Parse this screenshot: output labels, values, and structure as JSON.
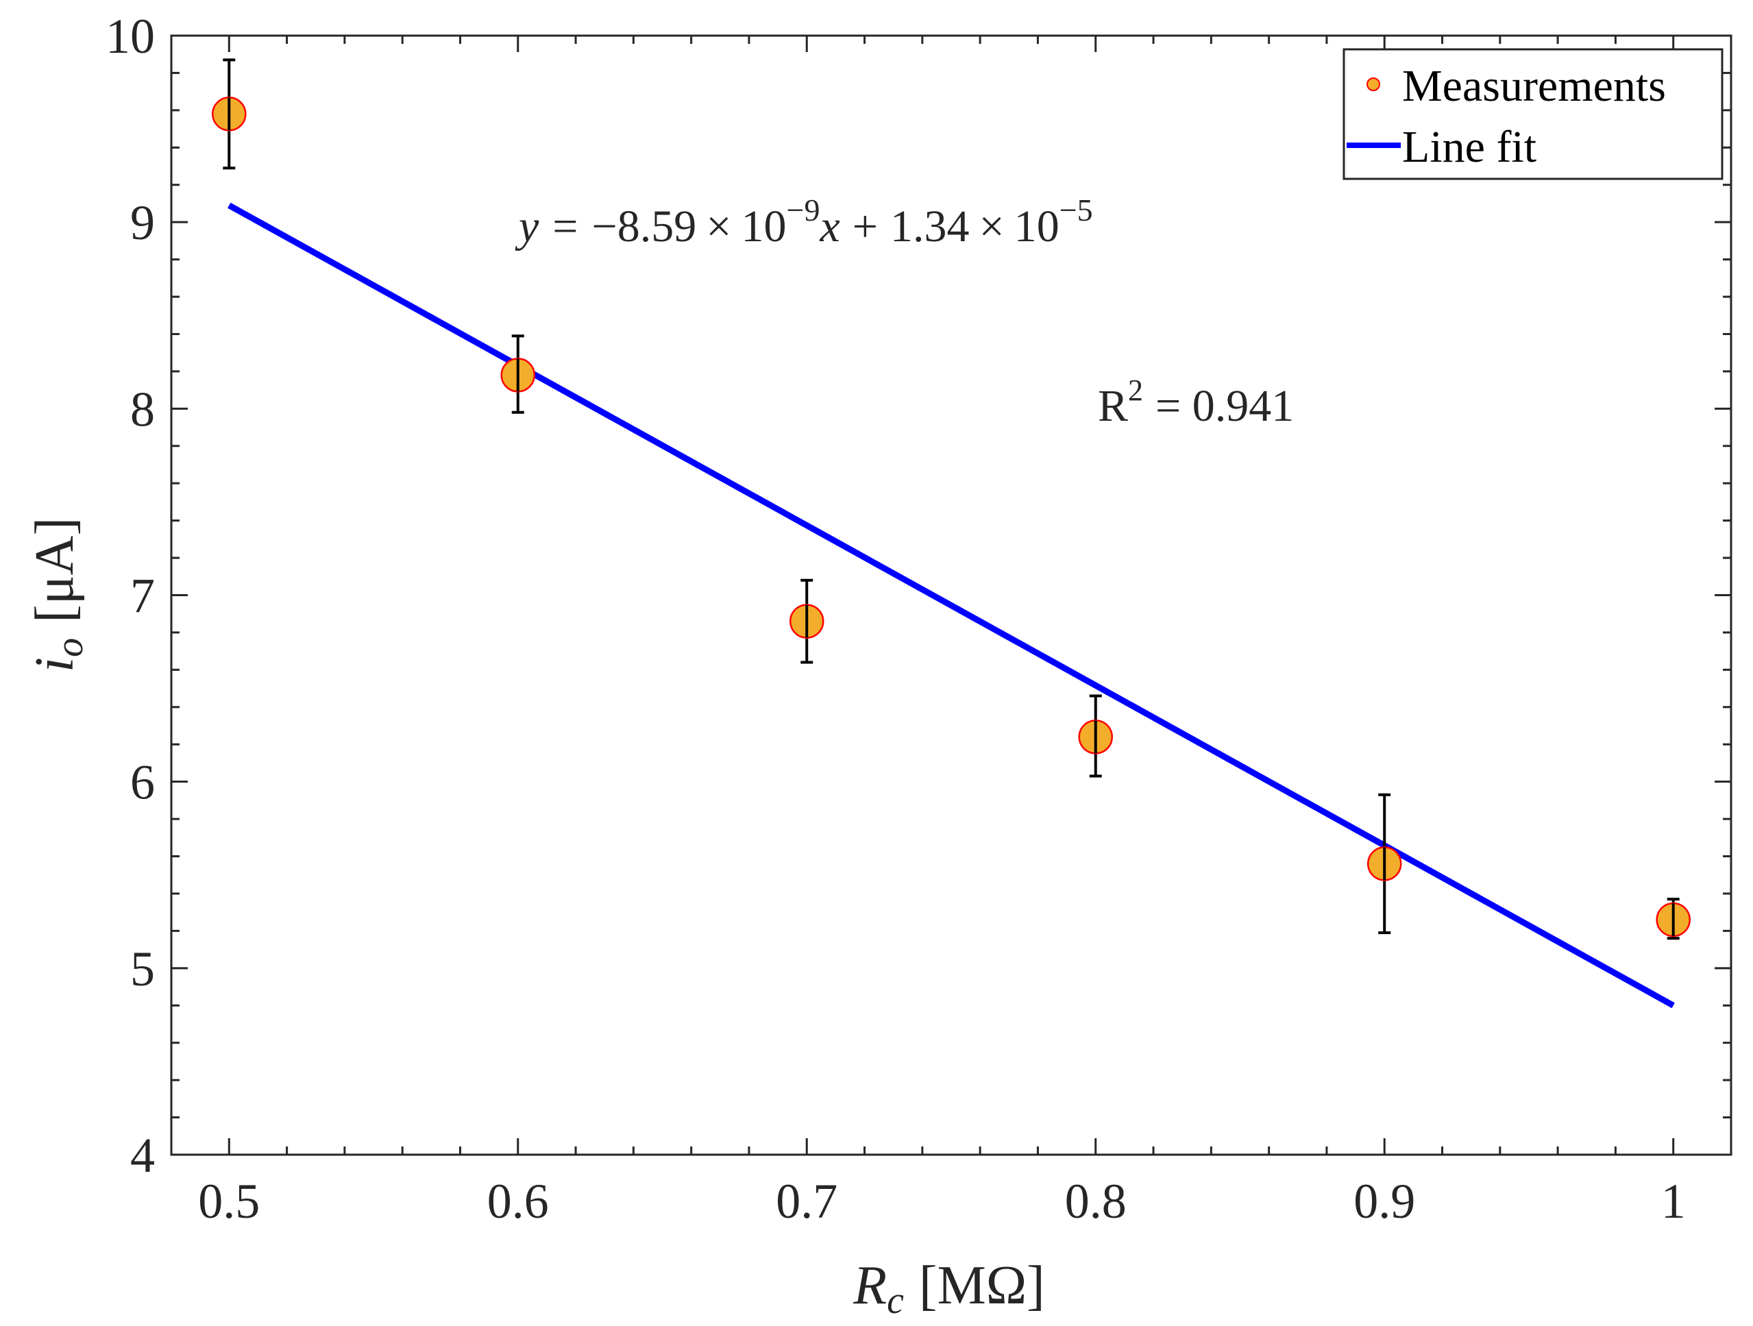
{
  "chart_data": {
    "type": "scatter",
    "title": "",
    "xlabel": {
      "symbol": "R",
      "subscript": "c",
      "unit": "[MΩ]"
    },
    "ylabel": {
      "symbol": "i",
      "subscript": "o",
      "unit": "[μA]"
    },
    "xlim": [
      0.48,
      1.02
    ],
    "ylim": [
      4,
      10
    ],
    "x_major_ticks": [
      0.5,
      0.6,
      0.7,
      0.8,
      0.9,
      1.0
    ],
    "x_tick_labels": [
      "0.5",
      "0.6",
      "0.7",
      "0.8",
      "0.9",
      "1"
    ],
    "x_minor_step": 0.02,
    "y_major_ticks": [
      4,
      5,
      6,
      7,
      8,
      9,
      10
    ],
    "y_tick_labels": [
      "4",
      "5",
      "6",
      "7",
      "8",
      "9",
      "10"
    ],
    "y_minor_step": 0.2,
    "grid": false,
    "series": [
      {
        "name": "Measurements",
        "kind": "scatter-errorbar",
        "x": [
          0.5,
          0.6,
          0.7,
          0.8,
          0.9,
          1.0
        ],
        "y": [
          9.58,
          8.18,
          6.86,
          6.24,
          5.56,
          5.26
        ],
        "error_low": [
          9.29,
          7.98,
          6.64,
          6.03,
          5.19,
          5.16
        ],
        "error_high": [
          9.87,
          8.39,
          7.08,
          6.46,
          5.93,
          5.37
        ],
        "marker_face": "#f2ad2b",
        "marker_edge": "#ff0000",
        "errorbar_color": "#000000"
      },
      {
        "name": "Line fit",
        "kind": "line",
        "x": [
          0.5,
          1.0
        ],
        "y": [
          9.09,
          4.8
        ],
        "color": "#0000ff"
      }
    ],
    "annotations": {
      "equation": {
        "y": "y",
        "eq": "=",
        "minus": "−",
        "slope": "8.59",
        "times": "×",
        "base": "10",
        "exp1": "−9",
        "x": "x",
        "plus": "+",
        "intercept": "1.34",
        "exp2": "−5"
      },
      "r_squared": {
        "label": "R",
        "exp": "2",
        "value": "= 0.941"
      }
    },
    "legend": {
      "placement": "top-right",
      "entries": [
        "Measurements",
        "Line fit"
      ]
    }
  }
}
